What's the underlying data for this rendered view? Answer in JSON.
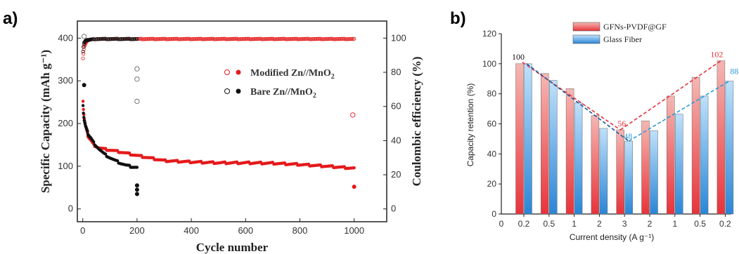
{
  "labels": {
    "a": "a)",
    "b": "b)"
  },
  "colors": {
    "modified": "#e41a1c",
    "bare": "#111111",
    "gfn_top": "#f5b7b3",
    "gfn_bottom": "#e8333a",
    "gf_top": "#bfe1fb",
    "gf_bottom": "#2a86d6",
    "annot_red": "#e8333a",
    "annot_blue": "#2a9ad6"
  },
  "chart_data": [
    {
      "type": "scatter",
      "xlabel": "Cycle number",
      "ylabel": "Specific Capacity (mAh g⁻¹)",
      "ylabel2": "Coulombic efficiency (%)",
      "xlim": [
        -20,
        1120
      ],
      "ylim": [
        -30,
        440
      ],
      "ylim2": [
        -7.5,
        110
      ],
      "xticks": [
        "0",
        "200",
        "400",
        "600",
        "800",
        "1000"
      ],
      "yticks": [
        "0",
        "100",
        "200",
        "300",
        "400"
      ],
      "yticks2": [
        "0",
        "20",
        "40",
        "60",
        "80",
        "100"
      ],
      "legend": [
        {
          "label": "Modified Zn//MnO",
          "sub": "2"
        },
        {
          "label": "Bare Zn//MnO",
          "sub": "2"
        }
      ],
      "legend_position": "center-right",
      "series": [
        {
          "name": "Modified Zn//MnO2",
          "kind": "capacity",
          "x": [
            1,
            3,
            5,
            10,
            20,
            40,
            60,
            80,
            100,
            150,
            200,
            300,
            400,
            500,
            600,
            700,
            800,
            900,
            1000
          ],
          "y": [
            250,
            230,
            215,
            195,
            170,
            150,
            143,
            140,
            138,
            132,
            125,
            113,
            110,
            108,
            108,
            107,
            104,
            100,
            95
          ],
          "outliers": [
            [
              1000,
              52
            ]
          ]
        },
        {
          "name": "Modified Zn//MnO2",
          "kind": "coulombic_efficiency",
          "x": [
            1,
            3,
            5,
            10,
            20,
            50,
            100,
            200,
            400,
            600,
            800,
            1000
          ],
          "y": [
            88,
            92,
            95,
            97,
            99,
            99.5,
            99.5,
            99.5,
            99.5,
            99.5,
            99.5,
            99.5
          ],
          "outliers": [
            [
              995,
              55
            ]
          ]
        },
        {
          "name": "Bare Zn//MnO2",
          "kind": "capacity",
          "x": [
            1,
            3,
            5,
            10,
            20,
            40,
            60,
            80,
            100,
            120,
            140,
            160,
            180,
            200
          ],
          "y": [
            240,
            222,
            210,
            195,
            175,
            155,
            140,
            128,
            120,
            113,
            107,
            102,
            99,
            97
          ],
          "outliers": [
            [
              5,
              290
            ],
            [
              200,
              55
            ],
            [
              200,
              45
            ],
            [
              200,
              35
            ]
          ]
        },
        {
          "name": "Bare Zn//MnO2",
          "kind": "coulombic_efficiency",
          "x": [
            1,
            3,
            5,
            10,
            20,
            50,
            100,
            150,
            200
          ],
          "y": [
            92,
            96,
            97.5,
            98.5,
            99,
            99.5,
            99.5,
            99.5,
            99.5
          ],
          "outliers": [
            [
              5,
              101
            ],
            [
              200,
              82
            ],
            [
              200,
              76
            ],
            [
              200,
              63
            ]
          ]
        }
      ]
    },
    {
      "type": "bar",
      "xlabel": "Current density (A g⁻¹)",
      "ylabel": "Capacity retention (%)",
      "ylim": [
        0,
        120
      ],
      "yticks": [
        "0",
        "20",
        "40",
        "60",
        "80",
        "100",
        "120"
      ],
      "x_origin_label": "0",
      "categories": [
        "0.2",
        "0.5",
        "1",
        "2",
        "3",
        "2",
        "1",
        "0.5",
        "0.2"
      ],
      "series": [
        {
          "name": "GFNs-PVDF@GF",
          "values": [
            100,
            93.5,
            83.5,
            65.5,
            56,
            62,
            78.5,
            91,
            102
          ]
        },
        {
          "name": "Glass Fiber",
          "values": [
            100,
            89,
            74,
            57,
            48.5,
            55.5,
            66.5,
            78.5,
            88.5
          ]
        }
      ],
      "annotations": [
        {
          "text": "100",
          "series": "both",
          "index": 0
        },
        {
          "text": "56",
          "series": 0,
          "index": 4
        },
        {
          "text": "48",
          "series": 1,
          "index": 4
        },
        {
          "text": "102",
          "series": 0,
          "index": 8
        },
        {
          "text": "88",
          "series": 1,
          "index": 8
        }
      ],
      "legend_position": "top-center"
    }
  ]
}
